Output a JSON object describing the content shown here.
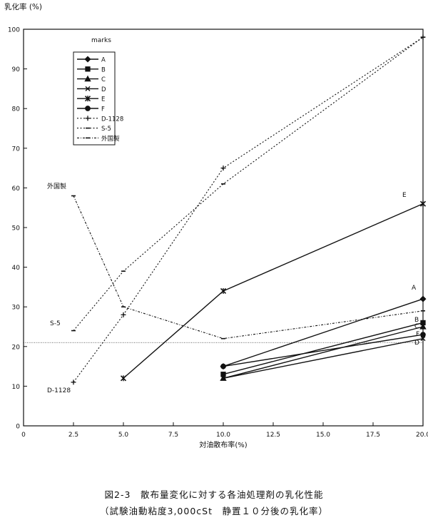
{
  "chart_data": {
    "type": "line",
    "ylabel": "乳化率 (%)",
    "xlabel": "対油散布率(%)",
    "xlim": [
      0,
      20
    ],
    "ylim": [
      0,
      100
    ],
    "x_ticks": [
      "0",
      "2.5",
      "5.0",
      "7.5",
      "10.0",
      "12.5",
      "15.0",
      "17.5",
      "20.0"
    ],
    "y_ticks": [
      "0",
      "10",
      "20",
      "30",
      "40",
      "50",
      "60",
      "70",
      "80",
      "90",
      "100"
    ],
    "grid": false,
    "legend_title": "marks",
    "legend_position": "top-left",
    "reference_line_y": 21,
    "series": [
      {
        "name": "A",
        "marker": "diamond",
        "style": "solid",
        "x": [
          10,
          20
        ],
        "y": [
          15,
          32
        ]
      },
      {
        "name": "B",
        "marker": "square",
        "style": "solid",
        "x": [
          10,
          20
        ],
        "y": [
          13,
          26
        ]
      },
      {
        "name": "C",
        "marker": "triangle",
        "style": "solid",
        "x": [
          10,
          20
        ],
        "y": [
          12,
          25
        ]
      },
      {
        "name": "D",
        "marker": "x",
        "style": "solid",
        "x": [
          10,
          20
        ],
        "y": [
          12,
          22
        ]
      },
      {
        "name": "E",
        "marker": "star",
        "style": "solid",
        "x": [
          5,
          10,
          20
        ],
        "y": [
          12,
          34,
          56
        ]
      },
      {
        "name": "F",
        "marker": "circle",
        "style": "solid",
        "x": [
          10,
          20
        ],
        "y": [
          15,
          23
        ]
      },
      {
        "name": "D-1128",
        "marker": "plus",
        "style": "dotted",
        "x": [
          2.5,
          5,
          10,
          20
        ],
        "y": [
          11,
          28,
          65,
          98
        ]
      },
      {
        "name": "S-5",
        "marker": "dash",
        "style": "dotted",
        "x": [
          2.5,
          5,
          10,
          20
        ],
        "y": [
          24,
          39,
          61,
          98
        ]
      },
      {
        "name": "外国製",
        "marker": "dash",
        "style": "dashdot",
        "x": [
          2.5,
          5,
          10,
          20
        ],
        "y": [
          58,
          30,
          22,
          29
        ]
      }
    ],
    "annotations": [
      {
        "text": "外国製"
      },
      {
        "text": "S-5"
      },
      {
        "text": "D-1128"
      },
      {
        "text": "E"
      },
      {
        "text": "A"
      },
      {
        "text": "B"
      },
      {
        "text": "C"
      },
      {
        "text": "F"
      },
      {
        "text": "D"
      }
    ]
  },
  "caption": {
    "line1": "図2-3　散布量変化に対する各油処理剤の乳化性能",
    "line2": "（試験油動粘度3,000cSt　静置１０分後の乳化率）"
  }
}
